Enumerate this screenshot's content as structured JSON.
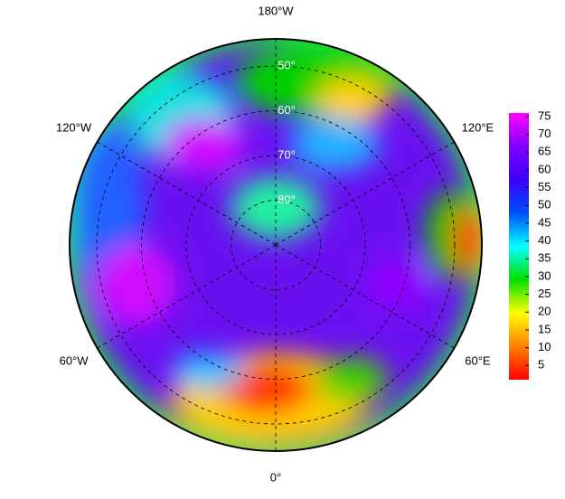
{
  "map": {
    "projection": "north-polar-stereographic",
    "longitude_labels": [
      {
        "value": -180,
        "label": "180°W"
      },
      {
        "value": -120,
        "label": "120°W"
      },
      {
        "value": 120,
        "label": "120°E"
      },
      {
        "value": -60,
        "label": "60°W"
      },
      {
        "value": 60,
        "label": "60°E"
      },
      {
        "value": 0,
        "label": "0°"
      }
    ],
    "latitude_labels": [
      {
        "value": 50,
        "label": "50°"
      },
      {
        "value": 60,
        "label": "60°"
      },
      {
        "value": 70,
        "label": "70°"
      },
      {
        "value": 80,
        "label": "80°"
      }
    ]
  },
  "colorbar": {
    "range": [
      1,
      76
    ],
    "ticks": [
      5,
      10,
      15,
      20,
      25,
      30,
      35,
      40,
      45,
      50,
      55,
      60,
      65,
      70,
      75
    ],
    "colors": [
      "#ff0000",
      "#ff8000",
      "#ffff00",
      "#00e000",
      "#00ffff",
      "#0050ff",
      "#3c00ff",
      "#8000ff",
      "#ff00ff"
    ]
  }
}
